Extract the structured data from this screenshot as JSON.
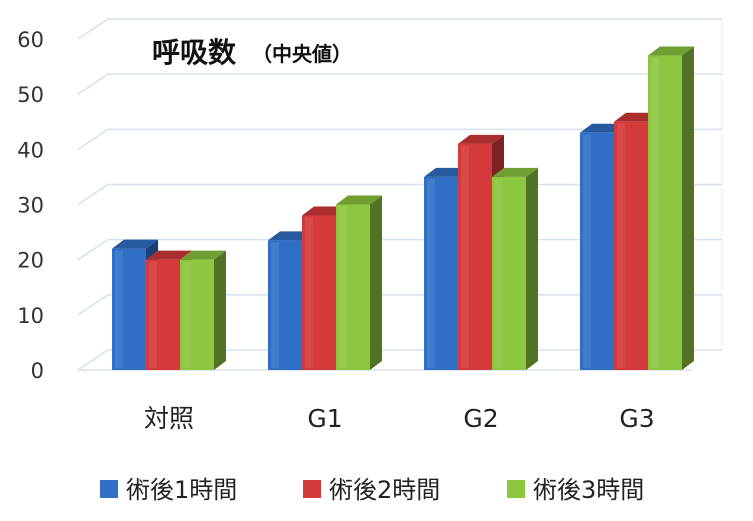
{
  "chart_data": {
    "type": "bar",
    "title": "呼吸数",
    "subtitle": "（中央値）",
    "categories": [
      "対照",
      "G1",
      "G2",
      "G3"
    ],
    "series": [
      {
        "name": "術後1時間",
        "values": [
          22,
          23.5,
          35,
          43
        ],
        "color": "#2f6fc6"
      },
      {
        "name": "術後2時間",
        "values": [
          20,
          28,
          41,
          45
        ],
        "color": "#d43a3a"
      },
      {
        "name": "術後3時間",
        "values": [
          20,
          30,
          35,
          57
        ],
        "color": "#8dc63f"
      }
    ],
    "ylim": [
      0,
      60
    ],
    "yticks": [
      "0",
      "10",
      "20",
      "30",
      "40",
      "50",
      "60"
    ],
    "xlabel": "",
    "ylabel": "",
    "grid": true,
    "legend_position": "bottom"
  }
}
